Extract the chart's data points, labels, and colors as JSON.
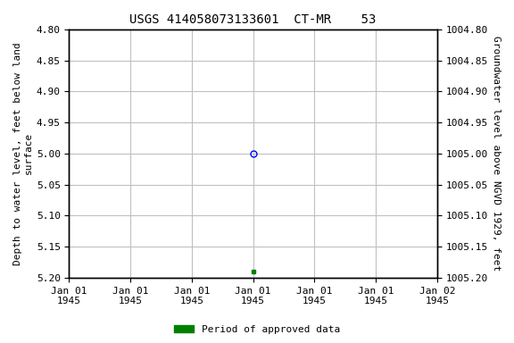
{
  "title": "USGS 414058073133601  CT-MR    53",
  "ylabel_left": "Depth to water level, feet below land\nsurface",
  "ylabel_right": "Groundwater level above NGVD 1929, feet",
  "ylim_left": [
    4.8,
    5.2
  ],
  "ylim_right_top": 1005.2,
  "ylim_right_bottom": 1004.8,
  "yticks_left": [
    4.8,
    4.85,
    4.9,
    4.95,
    5.0,
    5.05,
    5.1,
    5.15,
    5.2
  ],
  "yticks_right": [
    1005.2,
    1005.15,
    1005.1,
    1005.05,
    1005.0,
    1004.95,
    1004.9,
    1004.85,
    1004.8
  ],
  "xlim_days": [
    -3,
    3
  ],
  "xtick_positions": [
    -3,
    -2,
    -1,
    0,
    1,
    2,
    3
  ],
  "xtick_labels": [
    "Jan 01\n1945",
    "Jan 01\n1945",
    "Jan 01\n1945",
    "Jan 01\n1945",
    "Jan 01\n1945",
    "Jan 01\n1945",
    "Jan 02\n1945"
  ],
  "point_blue_x": 0,
  "point_blue_y": 5.0,
  "point_green_x": 0,
  "point_green_y": 5.19,
  "bg_color": "#ffffff",
  "grid_color": "#c0c0c0",
  "title_fontsize": 10,
  "axis_label_fontsize": 8,
  "tick_fontsize": 8,
  "legend_label": "Period of approved data",
  "legend_color": "#008000"
}
